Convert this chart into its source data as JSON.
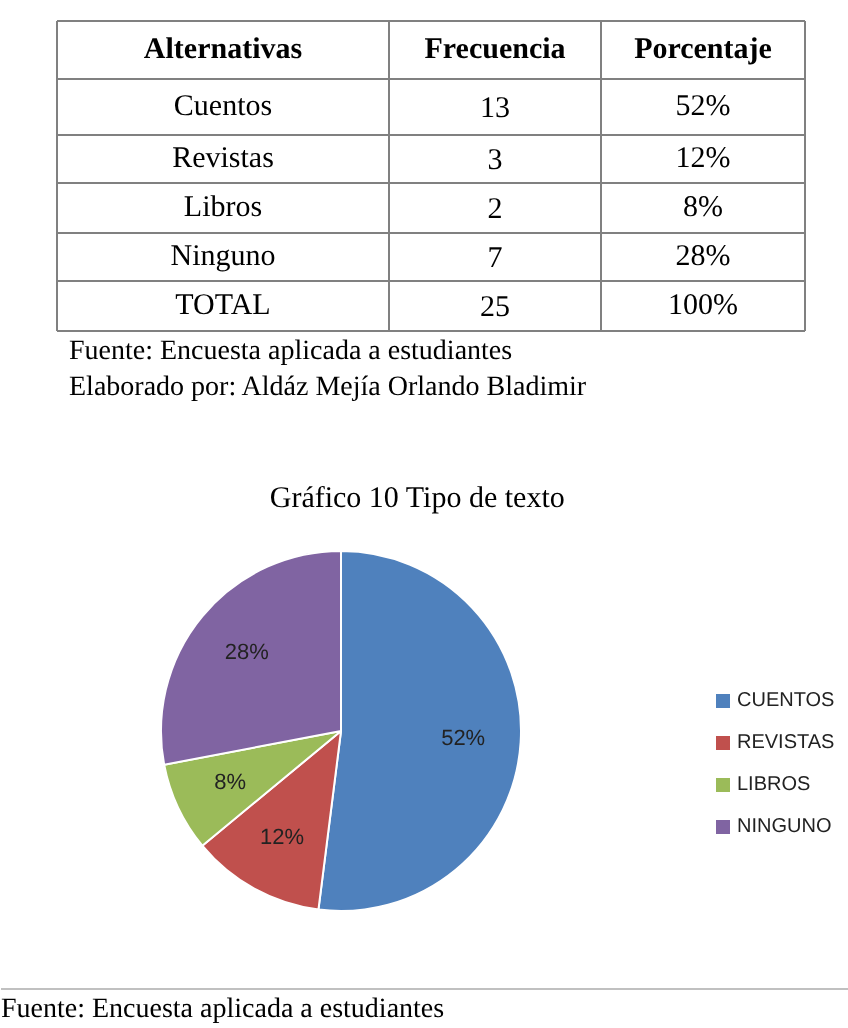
{
  "chart_data": [
    {
      "type": "other",
      "annotations": [
        "Alternativas",
        "Frecuencia",
        "Porcentaje",
        "Cuentos",
        "13",
        "52%",
        "Revistas",
        "3",
        "12%",
        "Libros",
        "2",
        "8%",
        "Ninguno",
        "7",
        "28%",
        "TOTAL",
        "25",
        "100%",
        "Fuente: Encuesta aplicada a estudiantes",
        "Elaborado por: Aldáz Mejía Orlando Bladimir"
      ]
    },
    {
      "type": "pie",
      "title": "Gráfico  10  Tipo de texto",
      "categories": [
        "CUENTOS",
        "REVISTAS",
        "LIBROS",
        "NINGUNO"
      ],
      "values": [
        52,
        12,
        8,
        28
      ],
      "colors": [
        "#4f81bd",
        "#c0504d",
        "#9bbb59",
        "#8064a2"
      ],
      "value_labels": [
        "52%",
        "12%",
        "8%",
        "28%"
      ],
      "legend": "right",
      "annotations": [
        "Fuente: Encuesta aplicada a estudiantes"
      ]
    }
  ]
}
